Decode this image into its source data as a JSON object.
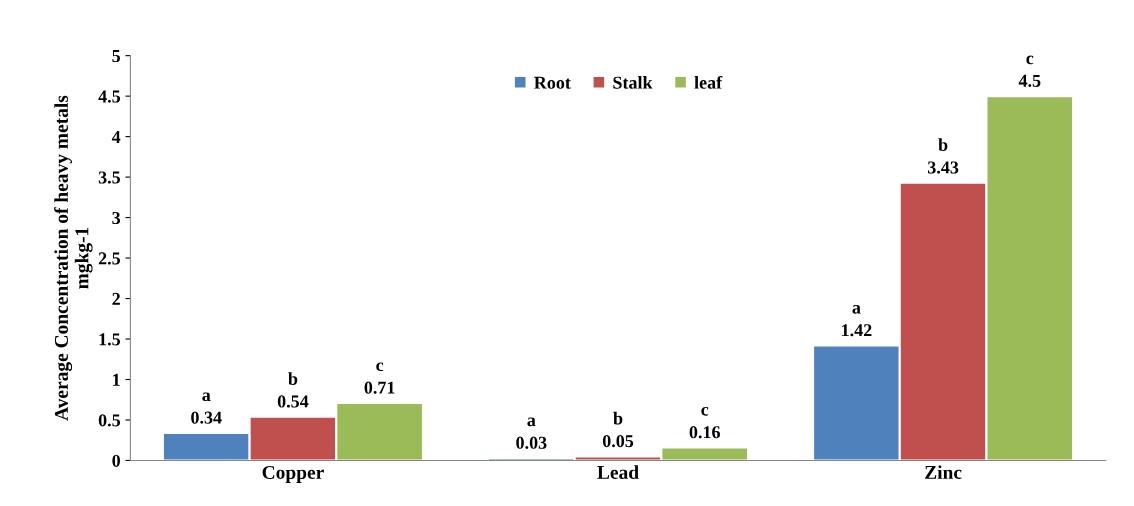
{
  "chart_data": {
    "type": "bar",
    "ylabel": "Average Concentration of heavy metals\nmgkg-1",
    "categories": [
      "Copper",
      "Lead",
      "Zinc"
    ],
    "series": [
      {
        "name": "Root",
        "color": "#4f81bd",
        "values": [
          0.34,
          0.03,
          1.42
        ],
        "value_labels": [
          "a\n0.34",
          "a\n0.03",
          "a\n1.42"
        ]
      },
      {
        "name": "Stalk",
        "color": "#c0504d",
        "values": [
          0.54,
          0.05,
          3.43
        ],
        "value_labels": [
          "b\n0.54",
          "b\n0.05",
          "b\n3.43"
        ]
      },
      {
        "name": "leaf",
        "color": "#9bbb59",
        "values": [
          0.71,
          0.16,
          4.5
        ],
        "value_labels": [
          "c\n0.71",
          "c\n0.16",
          "c\n4.5"
        ]
      }
    ],
    "ylim": [
      0,
      5
    ],
    "yticks": [
      0,
      0.5,
      1,
      1.5,
      2,
      2.5,
      3,
      3.5,
      4,
      4.5,
      5
    ],
    "grid": false,
    "legend": "top"
  }
}
